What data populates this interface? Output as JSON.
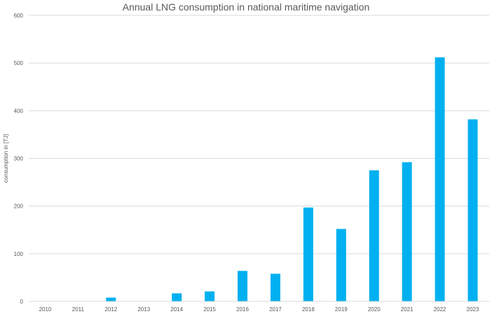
{
  "chart_data": {
    "type": "bar",
    "title": "Annual LNG consumption in national maritime navigation",
    "xlabel": "",
    "ylabel": "consumption in [TJ]",
    "categories": [
      "2010",
      "2011",
      "2012",
      "2013",
      "2014",
      "2015",
      "2016",
      "2017",
      "2018",
      "2019",
      "2020",
      "2021",
      "2022",
      "2023"
    ],
    "values": [
      0,
      0,
      8,
      0,
      17,
      21,
      64,
      58,
      197,
      152,
      275,
      292,
      512,
      382
    ],
    "ylim": [
      0,
      600
    ],
    "yticks": [
      0,
      100,
      200,
      300,
      400,
      500,
      600
    ],
    "grid": true,
    "legend": "none",
    "bar_color": "#00b0f0",
    "grid_color": "#d9d9d9",
    "text_color": "#595959"
  }
}
